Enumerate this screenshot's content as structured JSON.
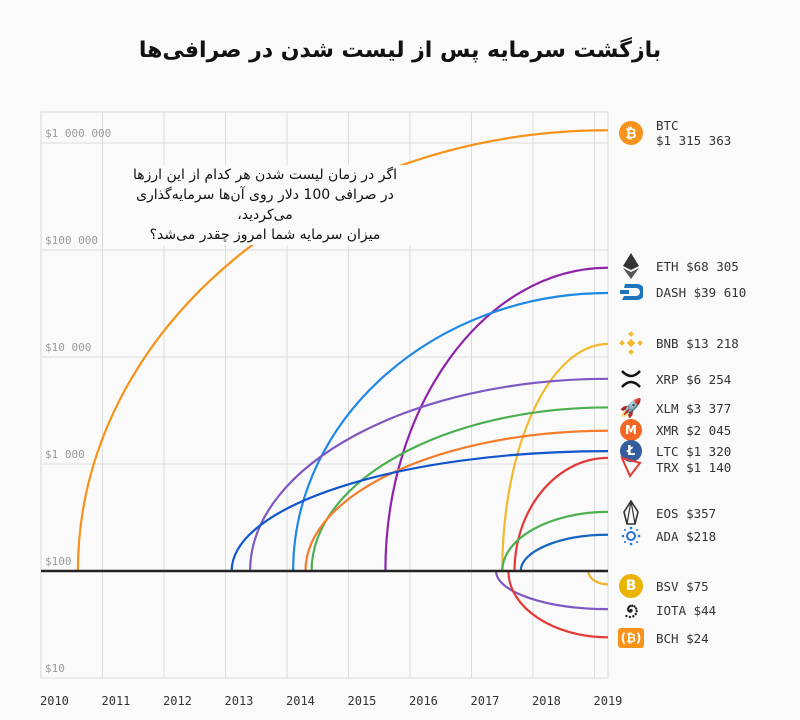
{
  "title": "بازگشت سرمایه پس از لیست شدن در صرافی‌ها",
  "note": [
    "اگر در زمان لیست شدن هر کدام از این ارزها",
    "در صرافی 100 دلار روی آن‌ها سرمایه‌گذاری می‌کردید،",
    "میزان سرمایه شما امروز چقدر می‌شد؟"
  ],
  "y_ticks": [
    "$1 000 000",
    "$100 000",
    "$10 000",
    "$1 000",
    "$100",
    "$10"
  ],
  "x_ticks": [
    "2010",
    "2011",
    "2012",
    "2013",
    "2014",
    "2015",
    "2016",
    "2017",
    "2018",
    "2019"
  ],
  "legend": [
    {
      "symbol": "BTC",
      "value": "$1 315 363",
      "icon": "bitcoin-icon",
      "color": "#f7931a"
    },
    {
      "symbol": "ETH",
      "value": "$68 305",
      "icon": "ethereum-icon",
      "color": "#8e24aa"
    },
    {
      "symbol": "DASH",
      "value": "$39 610",
      "icon": "dash-icon",
      "color": "#1e88e5"
    },
    {
      "symbol": "BNB",
      "value": "$13 218",
      "icon": "binance-icon",
      "color": "#f3ba2f"
    },
    {
      "symbol": "XRP",
      "value": "$6 254",
      "icon": "ripple-icon",
      "color": "#7e57c2"
    },
    {
      "symbol": "XLM",
      "value": "$3 377",
      "icon": "stellar-icon",
      "color": "#4caf50"
    },
    {
      "symbol": "XMR",
      "value": "$2 045",
      "icon": "monero-icon",
      "color": "#f57c2a"
    },
    {
      "symbol": "LTC",
      "value": "$1 320",
      "icon": "litecoin-icon",
      "color": "#1155cc"
    },
    {
      "symbol": "TRX",
      "value": "$1 140",
      "icon": "tron-icon",
      "color": "#e53935"
    },
    {
      "symbol": "EOS",
      "value": "$357",
      "icon": "eos-icon",
      "color": "#4caf50"
    },
    {
      "symbol": "ADA",
      "value": "$218",
      "icon": "cardano-icon",
      "color": "#1565c0"
    },
    {
      "symbol": "BSV",
      "value": "$75",
      "icon": "bitcoin-sv-icon",
      "color": "#f3b229"
    },
    {
      "symbol": "IOTA",
      "value": "$44",
      "icon": "iota-icon",
      "color": "#7e57c2"
    },
    {
      "symbol": "BCH",
      "value": "$24",
      "icon": "bitcoin-cash-icon",
      "color": "#e53935"
    }
  ],
  "chart_data": {
    "type": "line",
    "title": "بازگشت سرمایه پس از لیست شدن در صرافی‌ها",
    "xlabel": "",
    "ylabel": "",
    "yscale": "log",
    "ylim": [
      10,
      2000000
    ],
    "xlim": [
      2010,
      2019.2
    ],
    "grid": true,
    "legend_position": "right",
    "y_tick_labels": [
      "$10",
      "$100",
      "$1 000",
      "$10 000",
      "$100 000",
      "$1 000 000"
    ],
    "x_tick_labels": [
      "2010",
      "2011",
      "2012",
      "2013",
      "2014",
      "2015",
      "2016",
      "2017",
      "2018",
      "2019"
    ],
    "baseline": 100,
    "series": [
      {
        "name": "BTC",
        "listed": 2010.6,
        "start": 100,
        "end": 1315363
      },
      {
        "name": "ETH",
        "listed": 2015.6,
        "start": 100,
        "end": 68305
      },
      {
        "name": "DASH",
        "listed": 2014.1,
        "start": 100,
        "end": 39610
      },
      {
        "name": "BNB",
        "listed": 2017.5,
        "start": 100,
        "end": 13218
      },
      {
        "name": "XRP",
        "listed": 2013.4,
        "start": 100,
        "end": 6254
      },
      {
        "name": "XLM",
        "listed": 2014.4,
        "start": 100,
        "end": 3377
      },
      {
        "name": "XMR",
        "listed": 2014.3,
        "start": 100,
        "end": 2045
      },
      {
        "name": "LTC",
        "listed": 2013.1,
        "start": 100,
        "end": 1320
      },
      {
        "name": "TRX",
        "listed": 2017.7,
        "start": 100,
        "end": 1140
      },
      {
        "name": "EOS",
        "listed": 2017.5,
        "start": 100,
        "end": 357
      },
      {
        "name": "ADA",
        "listed": 2017.8,
        "start": 100,
        "end": 218
      },
      {
        "name": "BSV",
        "listed": 2018.9,
        "start": 100,
        "end": 75
      },
      {
        "name": "IOTA",
        "listed": 2017.4,
        "start": 100,
        "end": 44
      },
      {
        "name": "BCH",
        "listed": 2017.6,
        "start": 100,
        "end": 24
      }
    ]
  }
}
